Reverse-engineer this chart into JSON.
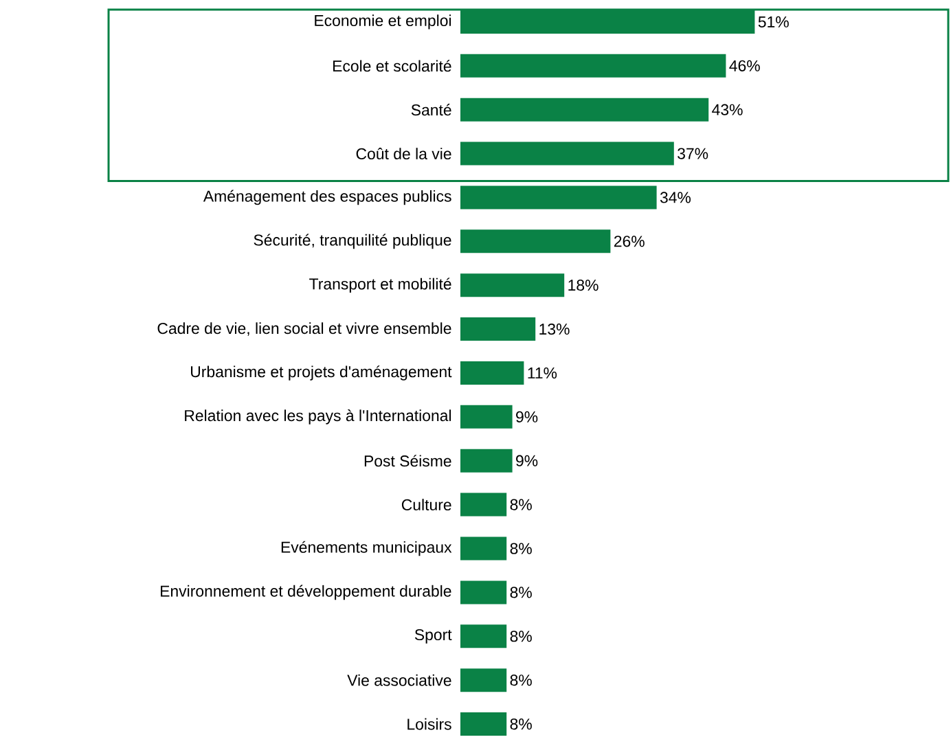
{
  "chart_data": {
    "type": "bar",
    "orientation": "horizontal",
    "color": "#0a8246",
    "categories": [
      "Economie et emploi",
      "Ecole et scolarité",
      "Santé",
      "Coût de la vie",
      "Aménagement des espaces publics",
      "Sécurité, tranquilité publique",
      "Transport et mobilité",
      "Cadre de vie, lien social et vivre ensemble",
      "Urbanisme et projets d'aménagement",
      "Relation avec les pays à l'International",
      "Post Séisme",
      "Culture",
      "Evénements municipaux",
      "Environnement et développement durable",
      "Sport",
      "Vie associative",
      "Loisirs"
    ],
    "values": [
      51,
      46,
      43,
      37,
      34,
      26,
      18,
      13,
      11,
      9,
      9,
      8,
      8,
      8,
      8,
      8,
      8
    ],
    "value_labels": [
      "51%",
      "46%",
      "43%",
      "37%",
      "34%",
      "26%",
      "18%",
      "13%",
      "11%",
      "9%",
      "9%",
      "8%",
      "8%",
      "8%",
      "8%",
      "8%",
      "8%"
    ]
  }
}
